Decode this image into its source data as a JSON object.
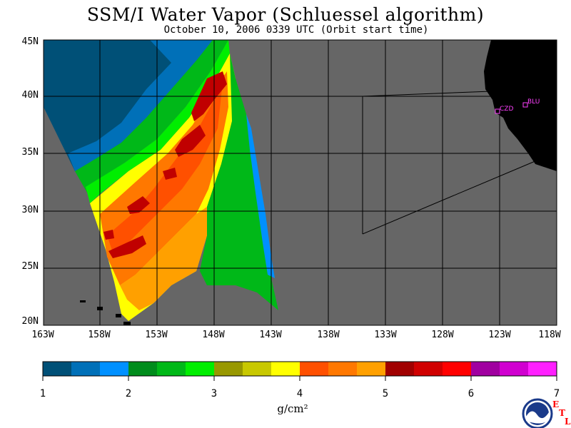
{
  "title": "SSM/I Water Vapor (Schluessel algorithm)",
  "subtitle": "October 10, 2006   0339 UTC  (Orbit start time)",
  "lat_labels": [
    "45N",
    "40N",
    "35N",
    "30N",
    "25N",
    "20N"
  ],
  "lon_labels": [
    "163W",
    "158W",
    "153W",
    "148W",
    "143W",
    "138W",
    "133W",
    "128W",
    "123W",
    "118W"
  ],
  "colorbar": {
    "ticks": [
      "1",
      "2",
      "3",
      "4",
      "5",
      "6",
      "7"
    ],
    "unit": "g/cm²",
    "colors": [
      "#005077",
      "#0070b8",
      "#0090ff",
      "#008c1c",
      "#00b818",
      "#00ee00",
      "#989800",
      "#c8c800",
      "#ffff00",
      "#ff5000",
      "#ff7800",
      "#ffa000",
      "#a00000",
      "#d00000",
      "#ff0000",
      "#a000a0",
      "#d000d0",
      "#ff20ff"
    ]
  },
  "stations": {
    "czd": "CZD",
    "blu": "BLU"
  },
  "logo": {
    "text": "NOAA",
    "etl": [
      "E",
      "T",
      "L"
    ]
  },
  "map_colors": {
    "ocean": "#666666",
    "land": "#000000",
    "station": "#ff40ff"
  }
}
